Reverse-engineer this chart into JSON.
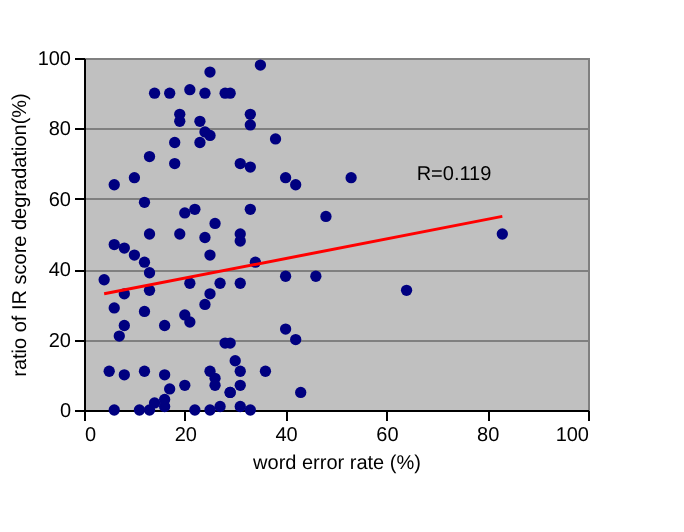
{
  "chart_data": {
    "type": "scatter",
    "xlabel": "word error rate (%)",
    "ylabel": "ratio of IR score degradation(%)",
    "xlim": [
      0,
      100
    ],
    "xticks": [
      0,
      20,
      40,
      60,
      80,
      100
    ],
    "ylim": [
      0,
      100
    ],
    "yticks": [
      0,
      20,
      40,
      60,
      80,
      100
    ],
    "grid": "y",
    "marker": "circle",
    "annotations": [
      "R=0.119"
    ],
    "series": [
      {
        "color": "#000080",
        "x": [
          35,
          29,
          33,
          33,
          38,
          31,
          33,
          40,
          42,
          53,
          33,
          48,
          31,
          31,
          83,
          34,
          40,
          46,
          31,
          64,
          40,
          42,
          29,
          30,
          31,
          36,
          31,
          29,
          43,
          33,
          25,
          14,
          17,
          21,
          24,
          28,
          19,
          19,
          23,
          24,
          25,
          23,
          18,
          13,
          18,
          6,
          10,
          12,
          20,
          22,
          26,
          13,
          19,
          24,
          6,
          25,
          8,
          10,
          12,
          13,
          4,
          13,
          21,
          27,
          8,
          25,
          24,
          6,
          12,
          16,
          20,
          21,
          8,
          7,
          28,
          5,
          8,
          12,
          16,
          25,
          26,
          20,
          17,
          26,
          29,
          16,
          14,
          6,
          11,
          13,
          16,
          22,
          25,
          27,
          31
        ],
        "values": [
          98,
          90,
          84,
          81,
          77,
          70,
          69,
          66,
          64,
          66,
          57,
          55,
          50,
          48,
          50,
          42,
          38,
          38,
          36,
          34,
          23,
          20,
          19,
          14,
          11,
          11,
          7,
          5,
          5,
          0,
          96,
          90,
          90,
          91,
          90,
          90,
          84,
          82,
          82,
          79,
          78,
          76,
          76,
          72,
          70,
          64,
          66,
          59,
          56,
          57,
          53,
          50,
          50,
          49,
          47,
          44,
          46,
          44,
          42,
          39,
          37,
          34,
          36,
          36,
          33,
          33,
          30,
          29,
          28,
          24,
          27,
          25,
          24,
          21,
          19,
          11,
          10,
          11,
          10,
          11,
          9,
          7,
          6,
          7,
          5,
          3,
          2,
          0,
          0,
          0,
          1,
          0,
          0,
          1,
          1
        ]
      },
      {
        "type": "line",
        "marker": "none",
        "color": "#ff0000",
        "x": [
          4,
          83
        ],
        "values": [
          33,
          55
        ]
      }
    ]
  }
}
